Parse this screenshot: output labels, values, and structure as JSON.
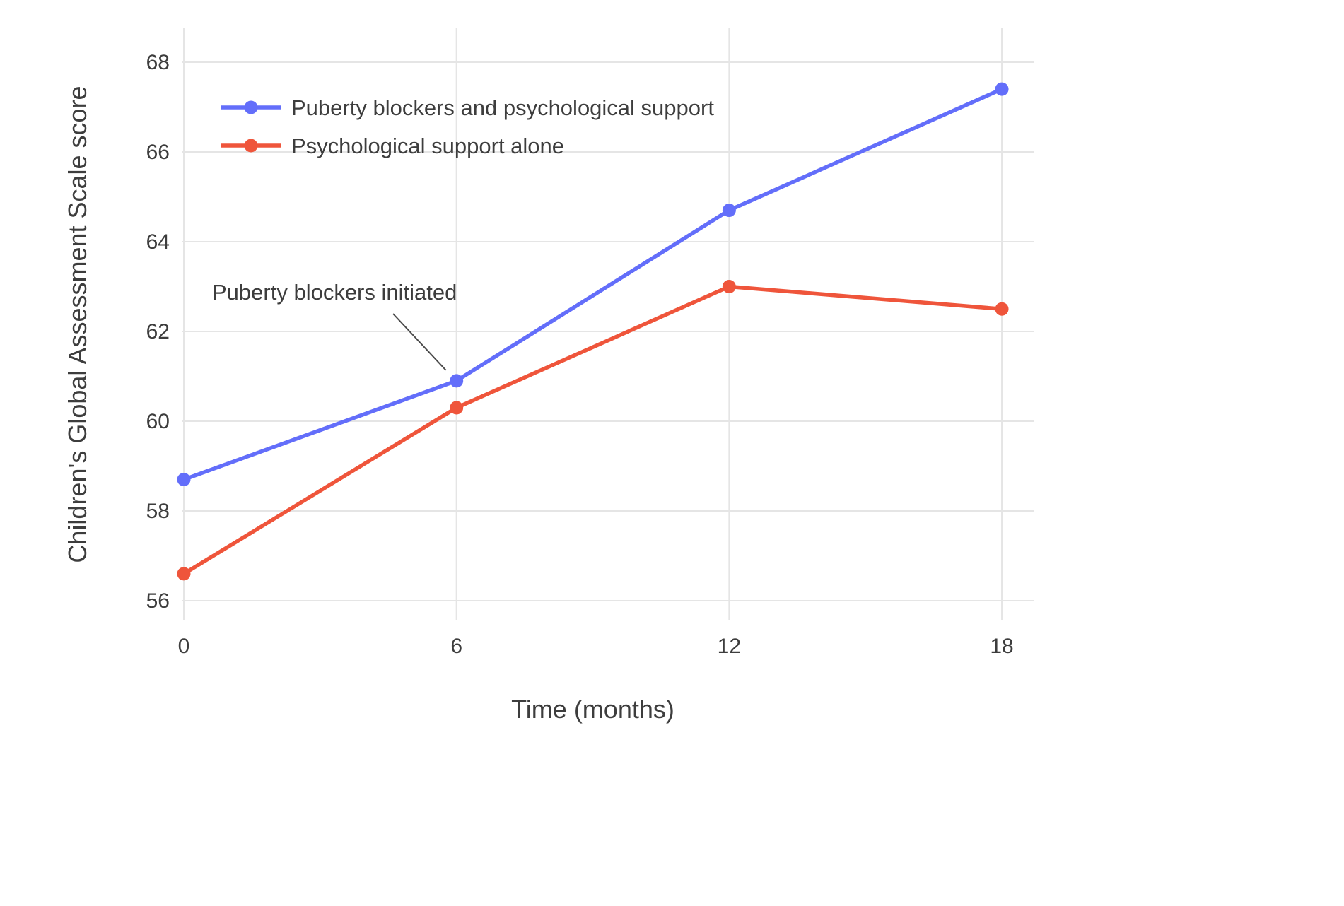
{
  "chart_data": {
    "type": "line",
    "x": [
      0,
      6,
      12,
      18
    ],
    "xticks": [
      0,
      6,
      12,
      18
    ],
    "yticks": [
      56,
      58,
      60,
      62,
      64,
      66,
      68
    ],
    "xlim": [
      -0.05,
      18.7
    ],
    "ylim": [
      55.6,
      68.75
    ],
    "xlabel": "Time (months)",
    "ylabel": "Children's Global Assessment Scale score",
    "grid": true,
    "grid_color": "#E5E5E5",
    "text_color": "#3D3D3D",
    "legend_position": "top-left",
    "series": [
      {
        "name": "Puberty blockers and psychological support",
        "color": "#636EFA",
        "values": [
          58.7,
          60.9,
          64.7,
          67.4
        ]
      },
      {
        "name": "Psychological support alone",
        "color": "#EF553B",
        "values": [
          56.6,
          60.3,
          63.0,
          62.5
        ]
      }
    ],
    "annotation": {
      "text": "Puberty blockers initiated",
      "target_series": "Puberty blockers and psychological support",
      "target_x": 6,
      "target_y": 60.9
    }
  }
}
